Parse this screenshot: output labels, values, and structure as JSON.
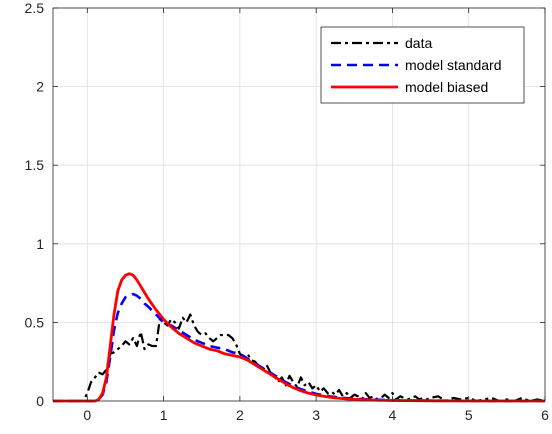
{
  "chart_data": {
    "type": "line",
    "title": "",
    "xlabel": "",
    "ylabel": "",
    "xlim": [
      -0.45,
      6
    ],
    "ylim": [
      0,
      2.5
    ],
    "xticks": [
      0,
      1,
      2,
      3,
      4,
      5,
      6
    ],
    "yticks": [
      0,
      0.5,
      1,
      1.5,
      2,
      2.5
    ],
    "xtick_labels": [
      "0",
      "1",
      "2",
      "3",
      "4",
      "5",
      "6"
    ],
    "ytick_labels": [
      "0",
      "0.5",
      "1",
      "1.5",
      "2",
      "2.5"
    ],
    "grid": true,
    "legend_position": "top-right",
    "series": [
      {
        "name": "data",
        "color": "#000000",
        "line_style": "dash-dot",
        "x": [
          -0.45,
          -0.05,
          0.0,
          0.05,
          0.1,
          0.15,
          0.2,
          0.25,
          0.3,
          0.35,
          0.4,
          0.45,
          0.5,
          0.55,
          0.6,
          0.65,
          0.7,
          0.75,
          0.8,
          0.85,
          0.9,
          0.95,
          1.0,
          1.05,
          1.1,
          1.15,
          1.2,
          1.25,
          1.3,
          1.35,
          1.4,
          1.45,
          1.5,
          1.55,
          1.6,
          1.65,
          1.7,
          1.75,
          1.8,
          1.85,
          1.9,
          1.95,
          2.0,
          2.05,
          2.1,
          2.15,
          2.2,
          2.25,
          2.3,
          2.35,
          2.4,
          2.45,
          2.5,
          2.55,
          2.6,
          2.65,
          2.7,
          2.75,
          2.8,
          2.85,
          2.9,
          2.95,
          3.0,
          3.05,
          3.1,
          3.15,
          3.2,
          3.25,
          3.3,
          3.35,
          3.4,
          3.45,
          3.5,
          3.55,
          3.6,
          3.65,
          3.7,
          3.75,
          3.8,
          3.85,
          3.9,
          3.95,
          4.0,
          4.05,
          4.1,
          4.15,
          4.2,
          4.25,
          4.3,
          4.35,
          4.4,
          4.45,
          4.5,
          4.6,
          4.7,
          4.8,
          4.9,
          5.0,
          5.1,
          5.2,
          5.3,
          5.4,
          5.5,
          5.6,
          5.7,
          5.8,
          5.9,
          6.0
        ],
        "y": [
          0.0,
          0.0,
          0.05,
          0.12,
          0.15,
          0.18,
          0.17,
          0.2,
          0.3,
          0.31,
          0.33,
          0.35,
          0.38,
          0.36,
          0.4,
          0.35,
          0.44,
          0.33,
          0.36,
          0.35,
          0.35,
          0.52,
          0.5,
          0.48,
          0.52,
          0.5,
          0.46,
          0.53,
          0.5,
          0.55,
          0.48,
          0.44,
          0.42,
          0.43,
          0.4,
          0.38,
          0.4,
          0.42,
          0.42,
          0.42,
          0.4,
          0.36,
          0.3,
          0.28,
          0.3,
          0.26,
          0.25,
          0.22,
          0.2,
          0.23,
          0.18,
          0.16,
          0.12,
          0.15,
          0.1,
          0.16,
          0.12,
          0.09,
          0.15,
          0.1,
          0.12,
          0.08,
          0.1,
          0.06,
          0.08,
          0.05,
          0.06,
          0.04,
          0.07,
          0.03,
          0.05,
          0.02,
          0.04,
          0.03,
          0.01,
          0.05,
          0.02,
          0.03,
          0.01,
          0.02,
          0.04,
          0.02,
          0.05,
          0.01,
          0.03,
          0.02,
          0.01,
          0.02,
          0.03,
          0.01,
          0.02,
          0.01,
          0.02,
          0.03,
          0.0,
          0.02,
          0.01,
          0.02,
          0.0,
          0.01,
          0.02,
          0.0,
          0.01,
          0.0,
          0.02,
          0.0,
          0.01,
          0.0
        ]
      },
      {
        "name": "model standard",
        "color": "#0000ff",
        "line_style": "dashed",
        "x": [
          -0.45,
          0.1,
          0.15,
          0.2,
          0.25,
          0.3,
          0.35,
          0.4,
          0.45,
          0.5,
          0.55,
          0.6,
          0.65,
          0.7,
          0.75,
          0.8,
          0.9,
          1.0,
          1.1,
          1.2,
          1.3,
          1.4,
          1.5,
          1.6,
          1.7,
          1.8,
          1.9,
          2.0,
          2.1,
          2.2,
          2.3,
          2.4,
          2.5,
          2.6,
          2.7,
          2.8,
          2.9,
          3.0,
          3.2,
          3.4,
          3.6,
          3.8,
          4.0,
          4.3,
          4.6,
          5.0,
          5.5,
          6.0
        ],
        "y": [
          0.0,
          0.0,
          0.01,
          0.04,
          0.12,
          0.28,
          0.45,
          0.56,
          0.62,
          0.66,
          0.67,
          0.68,
          0.67,
          0.65,
          0.62,
          0.6,
          0.55,
          0.5,
          0.48,
          0.45,
          0.42,
          0.39,
          0.37,
          0.35,
          0.34,
          0.33,
          0.31,
          0.3,
          0.27,
          0.24,
          0.21,
          0.18,
          0.15,
          0.12,
          0.095,
          0.075,
          0.06,
          0.045,
          0.028,
          0.018,
          0.012,
          0.008,
          0.005,
          0.003,
          0.002,
          0.001,
          0.0,
          0.0
        ]
      },
      {
        "name": "model biased",
        "color": "#ff0000",
        "line_style": "solid",
        "x": [
          -0.45,
          0.1,
          0.15,
          0.2,
          0.25,
          0.3,
          0.35,
          0.4,
          0.45,
          0.5,
          0.55,
          0.6,
          0.65,
          0.7,
          0.75,
          0.8,
          0.9,
          1.0,
          1.1,
          1.2,
          1.3,
          1.4,
          1.5,
          1.6,
          1.7,
          1.8,
          1.9,
          2.0,
          2.1,
          2.2,
          2.3,
          2.4,
          2.5,
          2.6,
          2.7,
          2.8,
          2.9,
          3.0,
          3.2,
          3.4,
          3.6,
          3.8,
          4.0,
          4.3,
          4.6,
          5.0,
          5.5,
          6.0
        ],
        "y": [
          0.0,
          0.0,
          0.01,
          0.05,
          0.15,
          0.35,
          0.55,
          0.7,
          0.77,
          0.8,
          0.81,
          0.8,
          0.77,
          0.73,
          0.69,
          0.65,
          0.58,
          0.52,
          0.47,
          0.43,
          0.4,
          0.37,
          0.35,
          0.33,
          0.32,
          0.3,
          0.29,
          0.28,
          0.26,
          0.23,
          0.2,
          0.17,
          0.14,
          0.11,
          0.085,
          0.065,
          0.05,
          0.038,
          0.022,
          0.013,
          0.008,
          0.005,
          0.003,
          0.002,
          0.001,
          0.0,
          0.0,
          0.0
        ]
      }
    ]
  }
}
